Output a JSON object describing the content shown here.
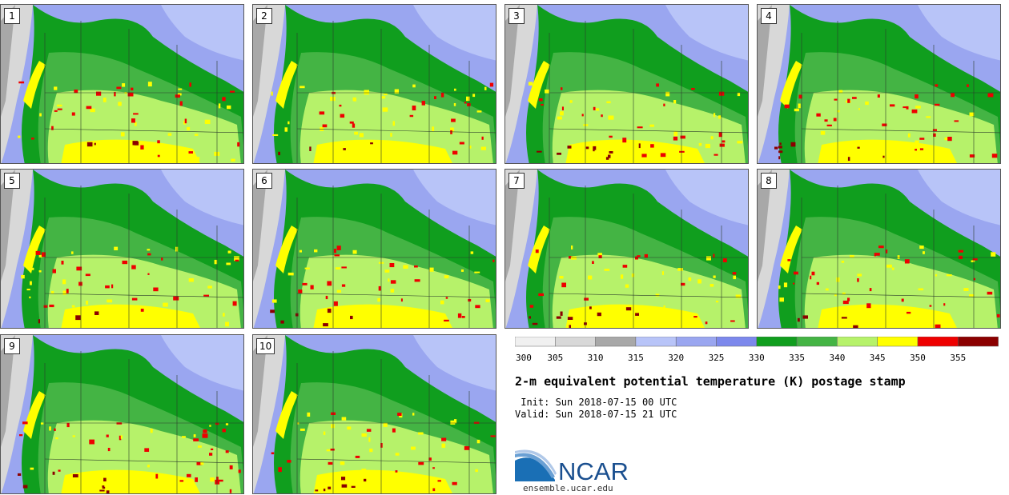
{
  "panels": [
    {
      "label": "1"
    },
    {
      "label": "2"
    },
    {
      "label": "3"
    },
    {
      "label": "4"
    },
    {
      "label": "5"
    },
    {
      "label": "6"
    },
    {
      "label": "7"
    },
    {
      "label": "8"
    },
    {
      "label": "9"
    },
    {
      "label": "10"
    }
  ],
  "colorbar": {
    "ticks": [
      "300",
      "305",
      "310",
      "315",
      "320",
      "325",
      "330",
      "335",
      "340",
      "345",
      "350",
      "355"
    ],
    "colors": [
      "#f0f0f0",
      "#d8d8d8",
      "#a8a8a8",
      "#b8c4f8",
      "#9aa6f0",
      "#7c88ec",
      "#109e1e",
      "#44b444",
      "#b6f26a",
      "#ffff00",
      "#ee0000",
      "#8b0000"
    ]
  },
  "title": "2-m equivalent potential temperature (K) postage stamp",
  "init": " Init: Sun 2018-07-15 00 UTC",
  "valid": "Valid: Sun 2018-07-15 21 UTC",
  "logo": {
    "text": "NCAR",
    "site": "ensemble.ucar.edu"
  }
}
